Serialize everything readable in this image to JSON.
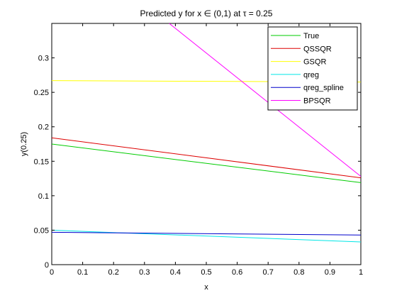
{
  "chart_data": {
    "type": "line",
    "title": "Predicted y for x ∈ (0,1) at τ = 0.25",
    "xlabel": "x",
    "ylabel": "y(0.25)",
    "xlim": [
      0,
      1
    ],
    "ylim": [
      0,
      0.35
    ],
    "xticks": [
      0,
      0.1,
      0.2,
      0.3,
      0.4,
      0.5,
      0.6,
      0.7,
      0.8,
      0.9,
      1
    ],
    "xtick_labels": [
      "0",
      "0.1",
      "0.2",
      "0.3",
      "0.4",
      "0.5",
      "0.6",
      "0.7",
      "0.8",
      "0.9",
      "1"
    ],
    "yticks": [
      0,
      0.05,
      0.1,
      0.15,
      0.2,
      0.25,
      0.3
    ],
    "ytick_labels": [
      "0",
      "0.05",
      "0.1",
      "0.15",
      "0.2",
      "0.25",
      "0.3"
    ],
    "grid": false,
    "legend_position": "top-right",
    "series": [
      {
        "name": "True",
        "color": "#00cc00",
        "x": [
          0,
          1
        ],
        "y": [
          0.175,
          0.119
        ]
      },
      {
        "name": "QSSQR",
        "color": "#dd0000",
        "x": [
          0,
          1
        ],
        "y": [
          0.184,
          0.126
        ]
      },
      {
        "name": "GSQR",
        "color": "#ffff00",
        "x": [
          0,
          1
        ],
        "y": [
          0.267,
          0.265
        ]
      },
      {
        "name": "qreg",
        "color": "#00e6e6",
        "x": [
          0,
          1
        ],
        "y": [
          0.05,
          0.033
        ]
      },
      {
        "name": "qreg_spline",
        "color": "#0000cc",
        "x": [
          0,
          1
        ],
        "y": [
          0.047,
          0.043
        ]
      },
      {
        "name": "BPSQR",
        "color": "#ff00ff",
        "x": [
          0.38,
          1
        ],
        "y": [
          0.35,
          0.128
        ]
      }
    ]
  }
}
